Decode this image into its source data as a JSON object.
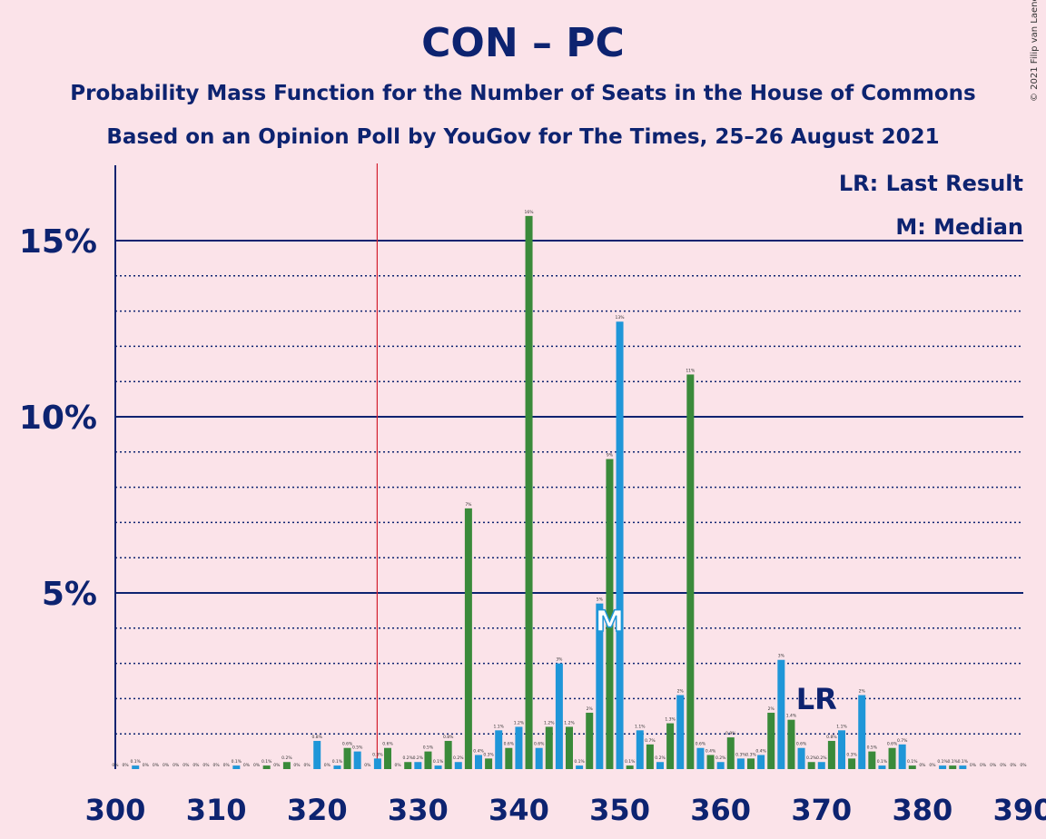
{
  "title": "CON – PC",
  "subtitle": "Probability Mass Function for the Number of Seats in the House of Commons",
  "subtitle2": "Based on an Opinion Poll by YouGov for The Times, 25–26 August 2021",
  "copyright": "© 2021 Filip van Laenen",
  "colors": {
    "background": "#fbe3e9",
    "axis": "#0d2370",
    "green": "#3a8a3a",
    "blue": "#1f96d8",
    "last_result_line": "#d32030"
  },
  "chart_data": {
    "type": "bar",
    "x_range": [
      300,
      390
    ],
    "y_range": [
      0,
      0.17
    ],
    "x_ticks": [
      300,
      310,
      320,
      330,
      340,
      350,
      360,
      370,
      380,
      390
    ],
    "x_tick_labels": [
      "300",
      "310",
      "320",
      "330",
      "340",
      "350",
      "360",
      "370",
      "380",
      "390"
    ],
    "y_major_ticks": [
      0.05,
      0.1,
      0.15
    ],
    "y_tick_labels": [
      "5%",
      "10%",
      "15%"
    ],
    "y_minor_ticks": [
      0.01,
      0.02,
      0.03,
      0.04,
      0.06,
      0.07,
      0.08,
      0.09,
      0.11,
      0.12,
      0.13,
      0.14
    ],
    "legend": {
      "last_result": "LR: Last Result",
      "median": "M: Median",
      "position": "top-right"
    },
    "last_result_seat": 326,
    "last_result_label": "LR",
    "lr_label_seat": 369.5,
    "median_seat": 349,
    "median_label": "M",
    "seats": [
      300,
      301,
      302,
      303,
      304,
      305,
      306,
      307,
      308,
      309,
      310,
      311,
      312,
      313,
      314,
      315,
      316,
      317,
      318,
      319,
      320,
      321,
      322,
      323,
      324,
      325,
      326,
      327,
      328,
      329,
      330,
      331,
      332,
      333,
      334,
      335,
      336,
      337,
      338,
      339,
      340,
      341,
      342,
      343,
      344,
      345,
      346,
      347,
      348,
      349,
      350,
      351,
      352,
      353,
      354,
      355,
      356,
      357,
      358,
      359,
      360,
      361,
      362,
      363,
      364,
      365,
      366,
      367,
      368,
      369,
      370,
      371,
      372,
      373,
      374,
      375,
      376,
      377,
      378,
      379,
      380,
      381,
      382,
      383,
      384,
      385,
      386,
      387,
      388,
      389,
      390
    ],
    "probabilities": [
      0.0,
      0.0,
      0.001,
      0.0,
      0.0,
      0.0,
      0.0,
      0.0,
      0.0,
      0.0,
      0.0,
      0.0,
      0.001,
      0.0,
      0.0,
      0.001,
      0.0,
      0.002,
      0.0,
      0.0,
      0.008,
      0.0,
      0.001,
      0.006,
      0.005,
      0.0,
      0.003,
      0.006,
      0.0,
      0.002,
      0.002,
      0.005,
      0.001,
      0.008,
      0.002,
      0.074,
      0.004,
      0.003,
      0.011,
      0.006,
      0.012,
      0.157,
      0.006,
      0.012,
      0.03,
      0.012,
      0.001,
      0.016,
      0.047,
      0.088,
      0.127,
      0.001,
      0.011,
      0.007,
      0.002,
      0.013,
      0.021,
      0.112,
      0.006,
      0.004,
      0.002,
      0.009,
      0.003,
      0.003,
      0.004,
      0.016,
      0.031,
      0.014,
      0.006,
      0.002,
      0.002,
      0.008,
      0.011,
      0.003,
      0.021,
      0.005,
      0.001,
      0.006,
      0.007,
      0.001,
      0.0,
      0.0,
      0.001,
      0.001,
      0.001,
      0.0,
      0.0,
      0.0,
      0.0,
      0.0,
      0.0
    ],
    "value_labels": [
      "0%",
      "0%",
      "0.1%",
      "0%",
      "0%",
      "0%",
      "0%",
      "0%",
      "0%",
      "0%",
      "0%",
      "0%",
      "0.1%",
      "0%",
      "0%",
      "0.1%",
      "0%",
      "0.2%",
      "0%",
      "0%",
      "0.8%",
      "0%",
      "0.1%",
      "0.6%",
      "0.5%",
      "0%",
      "0.3%",
      "0.6%",
      "0%",
      "0.2%",
      "0.2%",
      "0.5%",
      "0.1%",
      "0.8%",
      "0.2%",
      "7%",
      "0.4%",
      "0.3%",
      "1.1%",
      "0.6%",
      "1.2%",
      "16%",
      "0.6%",
      "1.2%",
      "3%",
      "1.2%",
      "0.1%",
      "2%",
      "5%",
      "9%",
      "13%",
      "0.1%",
      "1.1%",
      "0.7%",
      "0.2%",
      "1.3%",
      "2%",
      "11%",
      "0.6%",
      "0.4%",
      "0.2%",
      "0.9%",
      "0.3%",
      "0.3%",
      "0.4%",
      "2%",
      "3%",
      "1.4%",
      "0.6%",
      "0.2%",
      "0.2%",
      "0.8%",
      "1.1%",
      "0.3%",
      "2%",
      "0.5%",
      "0.1%",
      "0.6%",
      "0.7%",
      "0.1%",
      "0%",
      "0%",
      "0.1%",
      "0.1%",
      "0.1%",
      "0%",
      "0%",
      "0%",
      "0%",
      "0%",
      "0%"
    ]
  }
}
